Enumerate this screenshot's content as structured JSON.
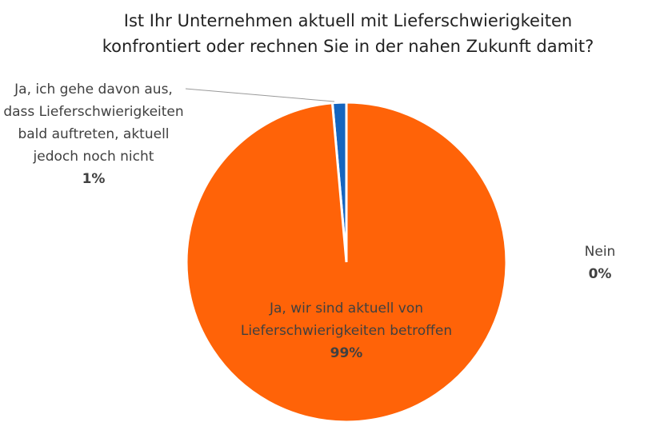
{
  "chart_data": {
    "type": "pie",
    "title": "Ist Ihr Unternehmen aktuell mit Lieferschwierigkeiten konfrontiert oder rechnen Sie in der nahen Zukunft damit?",
    "slices": [
      {
        "label": "Ja, wir sind aktuell von Lieferschwierigkeiten betroffen",
        "value": 98.6,
        "display": "99%",
        "color": "#FF6308"
      },
      {
        "label": "Ja, ich gehe davon aus, dass Lieferschwierigkeiten bald auftreten, aktuell jedoch noch nicht",
        "value": 1.4,
        "display": "1%",
        "color": "#1565BF"
      },
      {
        "label": "Nein",
        "value": 0,
        "display": "0%",
        "color": "#A0A0A0"
      }
    ],
    "start_angle": "12 o'clock",
    "direction": "clockwise",
    "legend": "none"
  }
}
